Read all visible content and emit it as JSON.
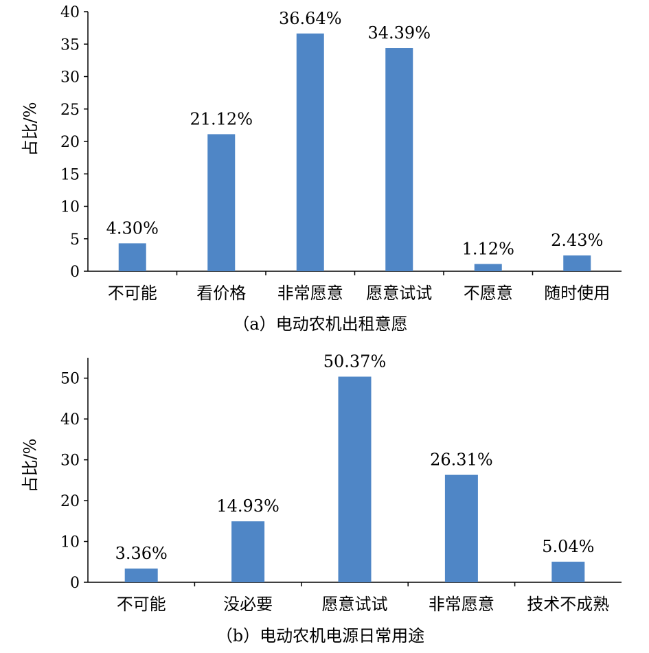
{
  "chart_data": [
    {
      "type": "bar",
      "caption": "（a）电动农机出租意愿",
      "ylabel": "占比/%",
      "ylim": [
        0,
        40
      ],
      "yticks": [
        0,
        5,
        10,
        15,
        20,
        25,
        30,
        35,
        40
      ],
      "categories": [
        "不可能",
        "看价格",
        "非常愿意",
        "愿意试试",
        "不愿意",
        "随时使用"
      ],
      "values": [
        4.3,
        21.12,
        36.64,
        34.39,
        1.12,
        2.43
      ],
      "value_labels": [
        "4.30%",
        "21.12%",
        "36.64%",
        "34.39%",
        "1.12%",
        "2.43%"
      ],
      "bar_color": "#4f86c6",
      "grid": false
    },
    {
      "type": "bar",
      "caption": "（b）电动农机电源日常用途",
      "ylabel": "占比/%",
      "ylim": [
        0,
        55
      ],
      "yticks": [
        0,
        10,
        20,
        30,
        40,
        50
      ],
      "categories": [
        "不可能",
        "没必要",
        "愿意试试",
        "非常愿意",
        "技术不成熟"
      ],
      "values": [
        3.36,
        14.93,
        50.37,
        26.31,
        5.04
      ],
      "value_labels": [
        "3.36%",
        "14.93%",
        "50.37%",
        "26.31%",
        "5.04%"
      ],
      "bar_color": "#4f86c6",
      "grid": false
    }
  ]
}
